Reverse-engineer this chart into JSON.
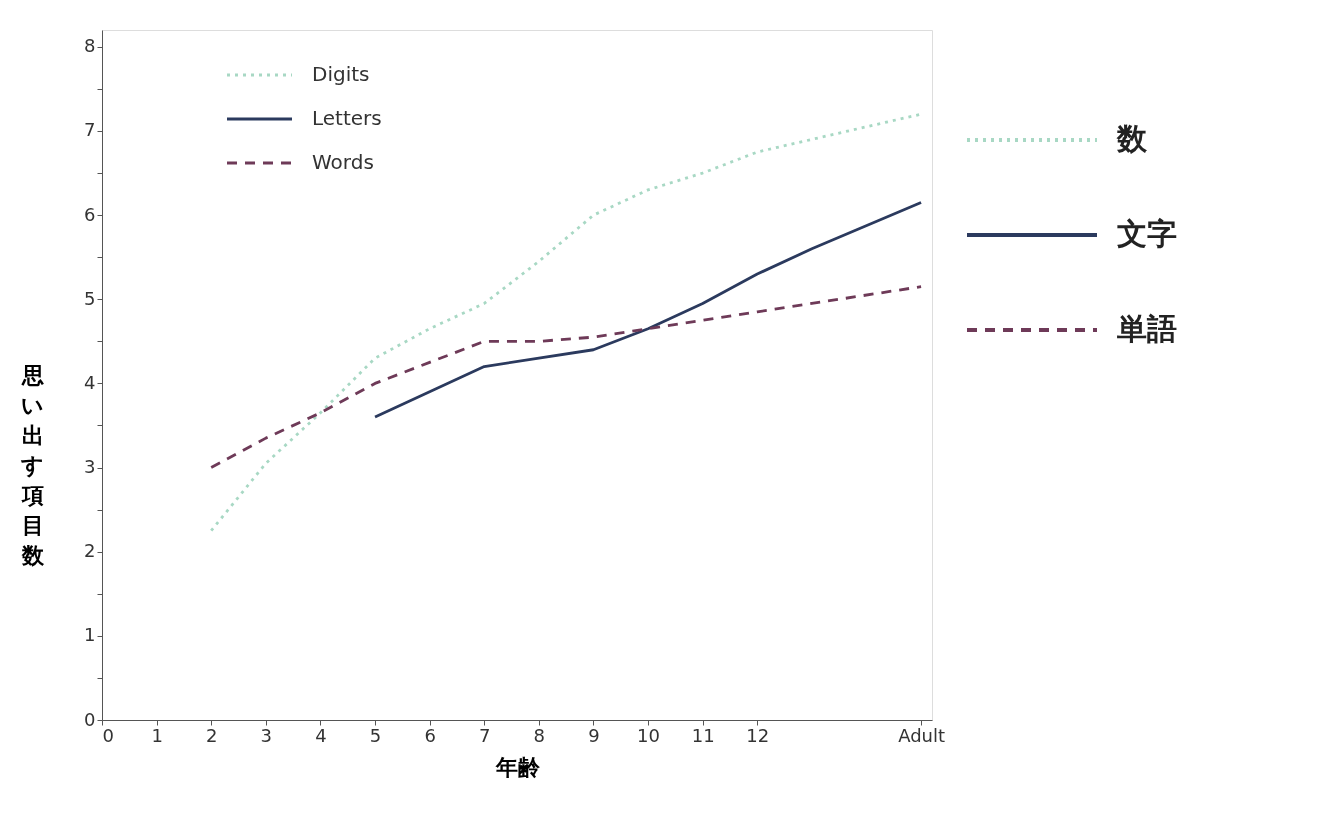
{
  "chart_data": {
    "type": "line",
    "xlabel": "年齢",
    "ylabel": "思い出す項目数",
    "xlim": [
      0,
      15.2
    ],
    "ylim": [
      0,
      8.2
    ],
    "xticks": [
      0,
      1,
      2,
      3,
      4,
      5,
      6,
      7,
      8,
      9,
      10,
      11,
      12,
      {
        "value": 15,
        "label": "Adult"
      }
    ],
    "yticks": [
      0,
      {
        "value": 0.5,
        "label": null
      },
      1,
      {
        "value": 1.5,
        "label": null
      },
      2,
      {
        "value": 2.5,
        "label": null
      },
      3,
      {
        "value": 3.5,
        "label": null
      },
      4,
      {
        "value": 4.5,
        "label": null
      },
      5,
      {
        "value": 5.5,
        "label": null
      },
      6,
      {
        "value": 6.5,
        "label": null
      },
      7,
      {
        "value": 7.5,
        "label": null
      },
      8
    ],
    "grid": false,
    "legend": "top left",
    "marker": "none",
    "series": [
      {
        "name": "Digits",
        "color": "#a8d8c4",
        "line_style": "dotted",
        "x": [
          2,
          3,
          4,
          5,
          6,
          7,
          8,
          9,
          10,
          11,
          12,
          13,
          15
        ],
        "values": [
          2.25,
          3.05,
          3.65,
          4.3,
          4.65,
          4.95,
          5.45,
          6.0,
          6.3,
          6.5,
          6.75,
          6.9,
          7.2
        ]
      },
      {
        "name": "Letters",
        "color": "#2b3a5e",
        "line_style": "solid",
        "x": [
          5,
          6,
          7,
          8,
          9,
          10,
          11,
          12,
          13,
          15
        ],
        "values": [
          3.6,
          3.9,
          4.2,
          4.3,
          4.4,
          4.65,
          4.95,
          5.3,
          5.6,
          6.15
        ]
      },
      {
        "name": "Words",
        "color": "#6e3a58",
        "line_style": "dashed",
        "x": [
          2,
          3,
          4,
          5,
          6,
          7,
          8,
          9,
          10,
          11,
          12,
          13,
          15
        ],
        "values": [
          3.0,
          3.35,
          3.65,
          4.0,
          4.25,
          4.5,
          4.5,
          4.55,
          4.65,
          4.75,
          4.85,
          4.95,
          5.15
        ]
      }
    ],
    "annotations": [
      "数",
      "文字",
      "単語"
    ]
  }
}
